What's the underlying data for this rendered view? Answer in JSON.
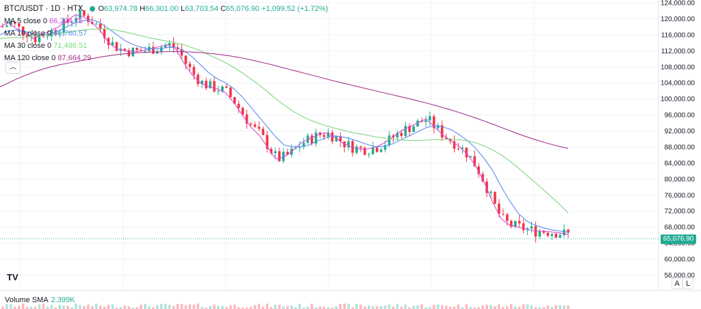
{
  "header": {
    "symbol": "BTC/USDT · 1D · HTX",
    "open_label": "O",
    "open": "63,974.78",
    "high_label": "H",
    "high": "66,301.00",
    "low_label": "L",
    "low": "63,703.54",
    "close_label": "C",
    "close": "65,076.90",
    "change": "+1,099.52 (+1.72%)"
  },
  "indicators": [
    {
      "name": "MA 5 close 0",
      "value": "66,204.75",
      "color": "#d34bd6"
    },
    {
      "name": "MA 10 close 0",
      "value": "66,760.57",
      "color": "#5b8def"
    },
    {
      "name": "MA 30 close 0",
      "value": "71,486.51",
      "color": "#7fd67f"
    },
    {
      "name": "MA 120 close 0",
      "value": "87,664.29",
      "color": "#a8338f"
    }
  ],
  "volume": {
    "label": "Volume SMA",
    "value": "2.399K"
  },
  "price_tag": "65,076.90",
  "buttons": {
    "auto": "A",
    "log": "L",
    "collapse": "︿"
  },
  "logo": "TV",
  "colors": {
    "up": "#22ab94",
    "down": "#f23645",
    "grid": "#f0f3fa",
    "axis_text": "#131722"
  },
  "chart_data": {
    "type": "line",
    "y_axis": {
      "range": [
        52000,
        126000
      ],
      "tick_labels": [
        "124,000.00",
        "120,000.00",
        "116,000.00",
        "112,000.00",
        "108,000.00",
        "104,000.00",
        "100,000.00",
        "96,000.00",
        "92,000.00",
        "88,000.00",
        "84,000.00",
        "80,000.00",
        "76,000.00",
        "72,000.00",
        "68,000.00",
        "64,000.00",
        "60,000.00",
        "56,000.00"
      ],
      "ticks": [
        124000,
        120000,
        116000,
        112000,
        108000,
        104000,
        100000,
        96000,
        92000,
        88000,
        84000,
        80000,
        76000,
        72000,
        68000,
        64000,
        60000,
        56000
      ]
    },
    "grid": true,
    "last_price": 65076.9,
    "series": [
      {
        "name": "MA 5 close 0",
        "color": "#d34bd6",
        "values": [
          118000,
          119000,
          117500,
          116500,
          115000,
          116000,
          117000,
          118000,
          119500,
          121000,
          120500,
          119000,
          117000,
          114000,
          112500,
          112000,
          111800,
          112000,
          112500,
          113000,
          113500,
          112500,
          109000,
          106000,
          104000,
          103000,
          102500,
          101500,
          99000,
          96000,
          93000,
          91000,
          88000,
          85000,
          85500,
          87000,
          89000,
          90000,
          91000,
          91500,
          90500,
          89000,
          88000,
          87500,
          87500,
          88000,
          89000,
          90500,
          92000,
          93000,
          94000,
          95000,
          93000,
          91000,
          89500,
          88000,
          86000,
          83000,
          79000,
          74000,
          70000,
          68500,
          68000,
          67500,
          67000,
          67000,
          66800,
          66500,
          66200
        ]
      },
      {
        "name": "MA 10 close 0",
        "color": "#5b8def",
        "values": [
          116000,
          117000,
          117200,
          116800,
          116200,
          115800,
          116200,
          117000,
          118000,
          119000,
          119500,
          119800,
          119000,
          117500,
          116000,
          114500,
          113500,
          112800,
          112500,
          112500,
          112800,
          112900,
          112000,
          110500,
          108500,
          106500,
          105000,
          104000,
          102500,
          100500,
          98000,
          95500,
          93000,
          90500,
          88500,
          88000,
          88000,
          88500,
          89500,
          90300,
          90800,
          90500,
          90000,
          89300,
          88600,
          88000,
          88200,
          88800,
          89800,
          90800,
          91800,
          92800,
          93300,
          93000,
          92300,
          91000,
          89500,
          87500,
          85000,
          82000,
          78000,
          74500,
          71500,
          69500,
          68500,
          67800,
          67300,
          67000,
          66760
        ]
      },
      {
        "name": "MA 30 close 0",
        "color": "#7fd67f",
        "values": [
          115000,
          115200,
          115300,
          115400,
          115600,
          115800,
          116000,
          116300,
          116600,
          116900,
          117200,
          117400,
          117500,
          117400,
          117100,
          116700,
          116200,
          115700,
          115200,
          114800,
          114400,
          114000,
          113500,
          112800,
          112000,
          111000,
          110000,
          109000,
          107800,
          106500,
          105000,
          103500,
          101800,
          100000,
          98500,
          97000,
          95800,
          94800,
          94000,
          93300,
          92700,
          92200,
          91700,
          91300,
          90900,
          90500,
          90200,
          89900,
          89700,
          89600,
          89600,
          89700,
          89800,
          89900,
          89900,
          89800,
          89500,
          89000,
          88200,
          87200,
          86000,
          84500,
          82800,
          81000,
          79200,
          77400,
          75500,
          73600,
          71486
        ]
      },
      {
        "name": "MA 120 close 0",
        "color": "#a8338f",
        "values": [
          103000,
          104000,
          105000,
          105900,
          106700,
          107400,
          108000,
          108500,
          108900,
          109300,
          109700,
          110100,
          110500,
          110800,
          111100,
          111300,
          111500,
          111600,
          111700,
          111750,
          111800,
          111800,
          111750,
          111650,
          111500,
          111300,
          111050,
          110750,
          110400,
          110000,
          109550,
          109050,
          108550,
          108000,
          107450,
          106900,
          106350,
          105800,
          105250,
          104700,
          104150,
          103650,
          103150,
          102650,
          102150,
          101650,
          101150,
          100650,
          100150,
          99650,
          99100,
          98550,
          97950,
          97350,
          96700,
          96000,
          95300,
          94550,
          93750,
          92950,
          92150,
          91350,
          90600,
          89900,
          89250,
          88650,
          88100,
          87664
        ]
      }
    ]
  }
}
